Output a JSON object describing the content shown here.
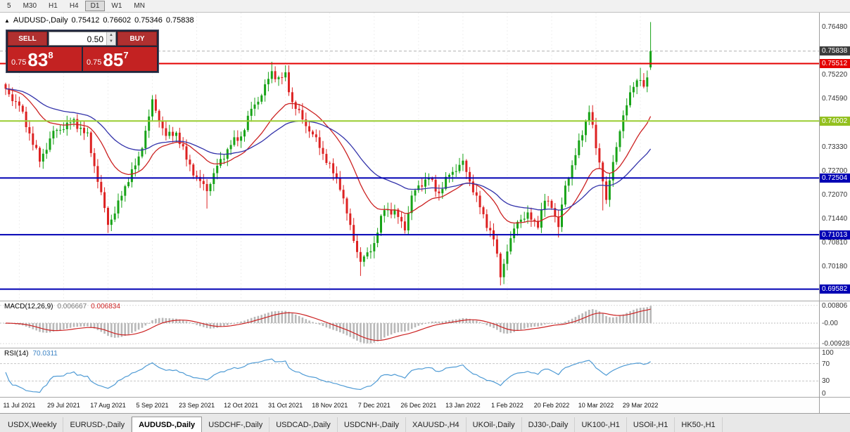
{
  "theme": {
    "up_color": "#17a317",
    "down_color": "#dd2222",
    "ma_fast_color": "#cc2222",
    "ma_slow_color": "#3333aa",
    "macd_hist_color": "#b9b9b9",
    "macd_signal_color": "#cc2222",
    "rsi_color": "#4f9bd5",
    "grid_color": "#efefef",
    "level_color": "#c8c8c8"
  },
  "icons": {
    "expand": "▲",
    "volume_up": "▲",
    "volume_down": "▼"
  },
  "toolbar": {
    "timeframes": [
      "5",
      "M30",
      "H1",
      "H4",
      "D1",
      "W1",
      "MN"
    ],
    "active": "D1"
  },
  "chart_header": {
    "symbol": "AUDUSD-,Daily",
    "open": "0.75412",
    "high": "0.76602",
    "low": "0.75346",
    "close": "0.75838"
  },
  "trade_panel": {
    "sell_label": "SELL",
    "buy_label": "BUY",
    "volume": "0.50",
    "sell_price": {
      "base": "0.75",
      "big": "83",
      "sup": "8"
    },
    "buy_price": {
      "base": "0.75",
      "big": "85",
      "sup": "7"
    }
  },
  "price_axis": {
    "plain_labels": [
      "0.76480",
      "0.75220",
      "0.74590",
      "0.73330",
      "0.72700",
      "0.72070",
      "0.71440",
      "0.70810",
      "0.70180"
    ],
    "markers": [
      {
        "price": 0.75838,
        "text": "0.75838",
        "bg": "#3c3c3c",
        "kind": "last-price"
      },
      {
        "price": 0.75512,
        "text": "0.75512",
        "bg": "#e40000",
        "kind": "resistance-line"
      },
      {
        "price": 0.74002,
        "text": "0.74002",
        "bg": "#93c01f",
        "kind": "support-line"
      },
      {
        "price": 0.72504,
        "text": "0.72504",
        "bg": "#0000b4",
        "kind": "support-line"
      },
      {
        "price": 0.71013,
        "text": "0.71013",
        "bg": "#0000b4",
        "kind": "support-line"
      },
      {
        "price": 0.69582,
        "text": "0.69582",
        "bg": "#0000b4",
        "kind": "support-line"
      }
    ]
  },
  "indicators": {
    "macd": {
      "label": "MACD(12,26,9)",
      "value_main": "0.006667",
      "value_signal": "0.006834",
      "axis_labels": [
        "0.00806",
        "-0.00",
        "-0.00928"
      ],
      "params": [
        12,
        26,
        9
      ]
    },
    "rsi": {
      "label": "RSI(14)",
      "value": "70.0311",
      "axis_labels": [
        "100",
        "70",
        "30",
        "0"
      ],
      "levels": [
        70,
        30
      ],
      "period": 14
    }
  },
  "tabs": [
    {
      "label": "USDX,Weekly",
      "active": false
    },
    {
      "label": "EURUSD-,Daily",
      "active": false
    },
    {
      "label": "AUDUSD-,Daily",
      "active": true
    },
    {
      "label": "USDCHF-,Daily",
      "active": false
    },
    {
      "label": "USDCAD-,Daily",
      "active": false
    },
    {
      "label": "USDCNH-,Daily",
      "active": false
    },
    {
      "label": "XAUUSD-,H4",
      "active": false
    },
    {
      "label": "UKOil-,Daily",
      "active": false
    },
    {
      "label": "DJ30-,Daily",
      "active": false
    },
    {
      "label": "UK100-,H1",
      "active": false
    },
    {
      "label": "USOil-,H1",
      "active": false
    },
    {
      "label": "HK50-,H1",
      "active": false
    }
  ],
  "chart_data": {
    "type": "candlestick",
    "title": "AUDUSD-,Daily",
    "timeframe": "Daily",
    "n_candles": 190,
    "y_range": [
      0.6928,
      0.7685
    ],
    "plot": {
      "x0": 8,
      "spacing": 4.85
    },
    "x_axis": {
      "tick_bars": [
        4,
        17,
        30,
        43,
        56,
        69,
        82,
        95,
        108,
        121,
        134,
        147,
        160,
        173,
        186
      ],
      "tick_labels": [
        "11 Jul 2021",
        "29 Jul 2021",
        "17 Aug 2021",
        "5 Sep 2021",
        "23 Sep 2021",
        "12 Oct 2021",
        "31 Oct 2021",
        "18 Nov 2021",
        "7 Dec 2021",
        "26 Dec 2021",
        "13 Jan 2022",
        "1 Feb 2022",
        "20 Feb 2022",
        "10 Mar 2022",
        "29 Mar 2022"
      ]
    },
    "close_anchors": [
      [
        0,
        0.748
      ],
      [
        4,
        0.744
      ],
      [
        10,
        0.7295
      ],
      [
        14,
        0.737
      ],
      [
        17,
        0.7385
      ],
      [
        20,
        0.74
      ],
      [
        24,
        0.736
      ],
      [
        30,
        0.713
      ],
      [
        32,
        0.716
      ],
      [
        36,
        0.725
      ],
      [
        39,
        0.73
      ],
      [
        43,
        0.745
      ],
      [
        47,
        0.736
      ],
      [
        50,
        0.737
      ],
      [
        53,
        0.73
      ],
      [
        56,
        0.725
      ],
      [
        59,
        0.722
      ],
      [
        62,
        0.728
      ],
      [
        66,
        0.734
      ],
      [
        69,
        0.736
      ],
      [
        72,
        0.743
      ],
      [
        75,
        0.747
      ],
      [
        78,
        0.753
      ],
      [
        80,
        0.751
      ],
      [
        82,
        0.752
      ],
      [
        84,
        0.745
      ],
      [
        88,
        0.739
      ],
      [
        91,
        0.735
      ],
      [
        95,
        0.728
      ],
      [
        98,
        0.723
      ],
      [
        101,
        0.712
      ],
      [
        104,
        0.703
      ],
      [
        106,
        0.705
      ],
      [
        108,
        0.708
      ],
      [
        111,
        0.717
      ],
      [
        114,
        0.716
      ],
      [
        117,
        0.712
      ],
      [
        119,
        0.72
      ],
      [
        121,
        0.723
      ],
      [
        124,
        0.725
      ],
      [
        127,
        0.721
      ],
      [
        130,
        0.726
      ],
      [
        134,
        0.729
      ],
      [
        137,
        0.722
      ],
      [
        140,
        0.715
      ],
      [
        143,
        0.709
      ],
      [
        145,
        0.6995
      ],
      [
        147,
        0.706
      ],
      [
        150,
        0.714
      ],
      [
        153,
        0.715
      ],
      [
        156,
        0.713
      ],
      [
        158,
        0.719
      ],
      [
        160,
        0.718
      ],
      [
        162,
        0.712
      ],
      [
        164,
        0.723
      ],
      [
        167,
        0.731
      ],
      [
        170,
        0.74
      ],
      [
        171,
        0.743
      ],
      [
        173,
        0.733
      ],
      [
        175,
        0.725
      ],
      [
        176,
        0.719
      ],
      [
        178,
        0.729
      ],
      [
        180,
        0.738
      ],
      [
        182,
        0.744
      ],
      [
        184,
        0.75
      ],
      [
        186,
        0.751
      ],
      [
        187,
        0.748
      ],
      [
        188,
        0.752
      ],
      [
        189,
        0.75838
      ]
    ],
    "wick_overrides": [
      {
        "i": 30,
        "l": 0.7106
      },
      {
        "i": 43,
        "h": 0.7468
      },
      {
        "i": 59,
        "l": 0.717
      },
      {
        "i": 78,
        "h": 0.7556
      },
      {
        "i": 104,
        "l": 0.6993
      },
      {
        "i": 134,
        "h": 0.7314
      },
      {
        "i": 145,
        "l": 0.6968
      },
      {
        "i": 162,
        "l": 0.7094
      },
      {
        "i": 171,
        "h": 0.7441
      },
      {
        "i": 175,
        "l": 0.7165
      },
      {
        "i": 186,
        "h": 0.754
      }
    ],
    "last_candle": {
      "o": 0.75412,
      "h": 0.76602,
      "l": 0.75346,
      "c": 0.75838
    },
    "noise": 0.0011,
    "moving_averages": [
      {
        "period": 20,
        "color": "#cc2222"
      },
      {
        "period": 45,
        "color": "#3333aa"
      }
    ],
    "hlines": [
      {
        "price": 0.75512,
        "color": "#e40000",
        "width": 2
      },
      {
        "price": 0.74002,
        "color": "#9acd32",
        "width": 2
      },
      {
        "price": 0.72504,
        "color": "#0000b4",
        "width": 2
      },
      {
        "price": 0.71013,
        "color": "#0000b4",
        "width": 2
      },
      {
        "price": 0.69582,
        "color": "#0000b4",
        "width": 2
      }
    ],
    "bid_line": {
      "price": 0.75838,
      "color": "#b0b0b0"
    }
  }
}
